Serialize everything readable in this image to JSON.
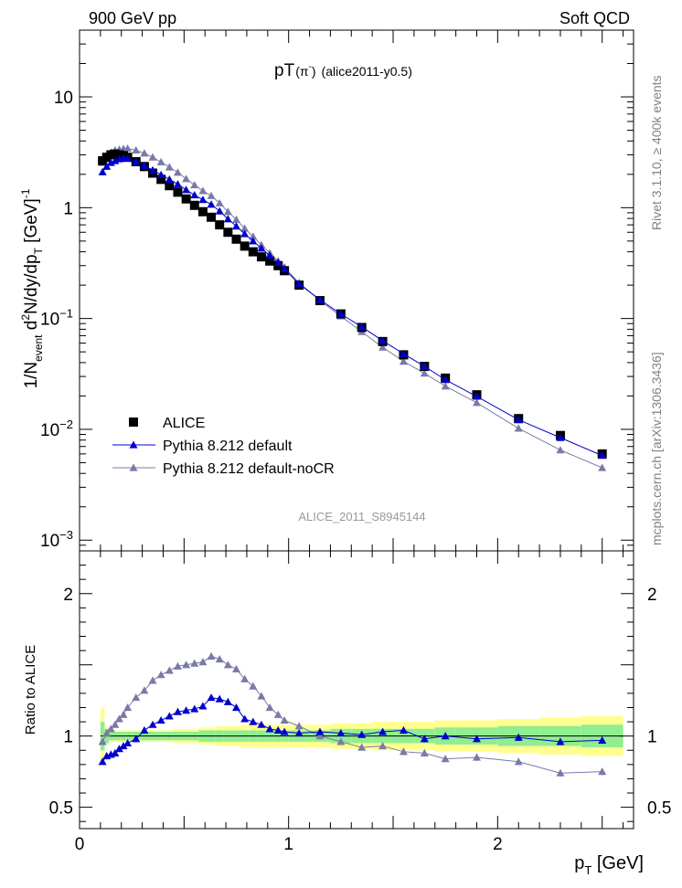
{
  "header": {
    "left": "900 GeV pp",
    "right": "Soft QCD"
  },
  "side": {
    "rivet": "Rivet 3.1.10, ≥ 400k events",
    "mcplots": "mcplots.cern.ch [arXiv:1306.3436]"
  },
  "chart_data": [
    {
      "type": "scatter",
      "title_main": "pT",
      "title_sub": "(π",
      "title_sup": "-",
      "title_close": ")",
      "title_tag": "(alice2011-y0.5)",
      "watermark": "ALICE_2011_S8945144",
      "ylabel": "1/N_event d²N/dy/dp_T [GeV]⁻¹",
      "ylabel_parts": {
        "a": "1/N",
        "a_sub": "event",
        "b": " d",
        "b_sup": "2",
        "c": "N/dy/dp",
        "c_sub": "T",
        "d": " [GeV]",
        "d_sup": "-1"
      },
      "yscale": "log",
      "xlim": [
        0,
        2.65
      ],
      "ylim": [
        0.0008,
        40
      ],
      "y_ticks": [
        {
          "v": 10,
          "m": "10",
          "e": ""
        },
        {
          "v": 1,
          "m": "1",
          "e": ""
        },
        {
          "v": 0.1,
          "m": "10",
          "e": "−1"
        },
        {
          "v": 0.01,
          "m": "10",
          "e": "−2"
        },
        {
          "v": 0.001,
          "m": "10",
          "e": "−3"
        }
      ],
      "legend": [
        "ALICE",
        "Pythia 8.212 default",
        "Pythia 8.212 default-noCR"
      ],
      "legend_position": "bottom-left",
      "series": [
        {
          "name": "ALICE",
          "color": "#000000",
          "marker": "square",
          "x": [
            0.11,
            0.13,
            0.15,
            0.17,
            0.19,
            0.21,
            0.23,
            0.27,
            0.31,
            0.35,
            0.39,
            0.43,
            0.47,
            0.51,
            0.55,
            0.59,
            0.63,
            0.67,
            0.71,
            0.75,
            0.79,
            0.83,
            0.87,
            0.91,
            0.95,
            0.98,
            1.05,
            1.15,
            1.25,
            1.35,
            1.45,
            1.55,
            1.65,
            1.75,
            1.9,
            2.1,
            2.3,
            2.5
          ],
          "y": [
            2.65,
            2.85,
            3.0,
            3.05,
            3.0,
            2.95,
            2.85,
            2.6,
            2.35,
            2.05,
            1.8,
            1.58,
            1.38,
            1.2,
            1.05,
            0.92,
            0.82,
            0.7,
            0.6,
            0.52,
            0.45,
            0.4,
            0.36,
            0.33,
            0.3,
            0.27,
            0.2,
            0.145,
            0.11,
            0.083,
            0.062,
            0.047,
            0.037,
            0.029,
            0.0205,
            0.0125,
            0.0088,
            0.006
          ]
        },
        {
          "name": "Pythia 8.212 default",
          "color": "#0000cc",
          "marker": "triangle",
          "x": [
            0.11,
            0.13,
            0.15,
            0.17,
            0.19,
            0.21,
            0.23,
            0.27,
            0.31,
            0.35,
            0.39,
            0.43,
            0.47,
            0.51,
            0.55,
            0.59,
            0.63,
            0.67,
            0.71,
            0.75,
            0.79,
            0.83,
            0.87,
            0.91,
            0.95,
            0.98,
            1.05,
            1.15,
            1.25,
            1.35,
            1.45,
            1.55,
            1.65,
            1.75,
            1.9,
            2.1,
            2.3,
            2.5
          ],
          "y": [
            2.1,
            2.35,
            2.55,
            2.65,
            2.75,
            2.8,
            2.78,
            2.6,
            2.4,
            2.18,
            1.98,
            1.8,
            1.63,
            1.45,
            1.3,
            1.18,
            1.07,
            0.93,
            0.79,
            0.68,
            0.58,
            0.5,
            0.43,
            0.37,
            0.32,
            0.28,
            0.205,
            0.148,
            0.11,
            0.084,
            0.063,
            0.048,
            0.037,
            0.028,
            0.0198,
            0.0122,
            0.0084,
            0.0058
          ]
        },
        {
          "name": "Pythia 8.212 default-noCR",
          "color": "#7a7aa8",
          "marker": "triangle",
          "x": [
            0.11,
            0.13,
            0.15,
            0.17,
            0.19,
            0.21,
            0.23,
            0.27,
            0.31,
            0.35,
            0.39,
            0.43,
            0.47,
            0.51,
            0.55,
            0.59,
            0.63,
            0.67,
            0.71,
            0.75,
            0.79,
            0.83,
            0.87,
            0.91,
            0.95,
            0.98,
            1.05,
            1.15,
            1.25,
            1.35,
            1.45,
            1.55,
            1.65,
            1.75,
            1.9,
            2.1,
            2.3,
            2.5
          ],
          "y": [
            2.55,
            2.9,
            3.15,
            3.3,
            3.35,
            3.4,
            3.42,
            3.3,
            3.1,
            2.85,
            2.58,
            2.32,
            2.08,
            1.82,
            1.6,
            1.42,
            1.28,
            1.1,
            0.92,
            0.78,
            0.65,
            0.55,
            0.46,
            0.39,
            0.33,
            0.29,
            0.21,
            0.145,
            0.105,
            0.076,
            0.055,
            0.041,
            0.032,
            0.0245,
            0.0174,
            0.0102,
            0.0065,
            0.0045
          ]
        }
      ]
    },
    {
      "type": "scatter",
      "ylabel": "Ratio to ALICE",
      "xlabel_main": "p",
      "xlabel_sub": "T",
      "xlabel_unit": " [GeV]",
      "xlim": [
        0,
        2.65
      ],
      "ylim": [
        0.35,
        2.3
      ],
      "x_ticks": [
        {
          "v": 0,
          "label": "0"
        },
        {
          "v": 1,
          "label": "1"
        },
        {
          "v": 2,
          "label": "2"
        }
      ],
      "y_ticks": [
        {
          "v": 2,
          "label": "2"
        },
        {
          "v": 1,
          "label": "1"
        },
        {
          "v": 0.5,
          "label": "0.5"
        }
      ],
      "bands": {
        "x_edges": [
          0.1,
          0.12,
          0.14,
          0.16,
          0.18,
          0.2,
          0.22,
          0.25,
          0.29,
          0.33,
          0.37,
          0.41,
          0.45,
          0.49,
          0.53,
          0.57,
          0.61,
          0.65,
          0.69,
          0.73,
          0.77,
          0.81,
          0.85,
          0.89,
          0.93,
          0.97,
          1.0,
          1.1,
          1.2,
          1.3,
          1.4,
          1.5,
          1.6,
          1.7,
          1.8,
          2.0,
          2.2,
          2.4,
          2.6
        ],
        "green_halfwidth": [
          0.1,
          0.05,
          0.03,
          0.03,
          0.03,
          0.03,
          0.03,
          0.03,
          0.03,
          0.03,
          0.03,
          0.03,
          0.03,
          0.03,
          0.03,
          0.04,
          0.04,
          0.04,
          0.04,
          0.04,
          0.04,
          0.04,
          0.04,
          0.04,
          0.04,
          0.04,
          0.04,
          0.04,
          0.05,
          0.05,
          0.05,
          0.05,
          0.05,
          0.06,
          0.06,
          0.07,
          0.07,
          0.08
        ],
        "yellow_halfwidth": [
          0.2,
          0.06,
          0.04,
          0.04,
          0.04,
          0.04,
          0.04,
          0.04,
          0.04,
          0.04,
          0.04,
          0.04,
          0.05,
          0.05,
          0.05,
          0.06,
          0.06,
          0.07,
          0.07,
          0.07,
          0.08,
          0.08,
          0.08,
          0.08,
          0.08,
          0.08,
          0.08,
          0.08,
          0.09,
          0.09,
          0.1,
          0.1,
          0.1,
          0.11,
          0.11,
          0.12,
          0.13,
          0.14
        ]
      },
      "series": [
        {
          "name": "Pythia 8.212 default",
          "color": "#0000cc",
          "marker": "triangle",
          "x": [
            0.11,
            0.13,
            0.15,
            0.17,
            0.19,
            0.21,
            0.23,
            0.27,
            0.31,
            0.35,
            0.39,
            0.43,
            0.47,
            0.51,
            0.55,
            0.59,
            0.63,
            0.67,
            0.71,
            0.75,
            0.79,
            0.83,
            0.87,
            0.91,
            0.95,
            0.98,
            1.05,
            1.15,
            1.25,
            1.35,
            1.45,
            1.55,
            1.65,
            1.75,
            1.9,
            2.1,
            2.3,
            2.5
          ],
          "y": [
            0.82,
            0.86,
            0.87,
            0.88,
            0.91,
            0.93,
            0.95,
            0.98,
            1.04,
            1.08,
            1.11,
            1.14,
            1.17,
            1.18,
            1.19,
            1.21,
            1.27,
            1.26,
            1.24,
            1.2,
            1.12,
            1.1,
            1.08,
            1.05,
            1.04,
            1.03,
            1.02,
            1.03,
            1.02,
            1.01,
            1.03,
            1.04,
            0.98,
            1.0,
            0.98,
            0.99,
            0.96,
            0.97
          ]
        },
        {
          "name": "Pythia 8.212 default-noCR",
          "color": "#7a7aa8",
          "marker": "triangle",
          "x": [
            0.11,
            0.13,
            0.15,
            0.17,
            0.19,
            0.21,
            0.23,
            0.27,
            0.31,
            0.35,
            0.39,
            0.43,
            0.47,
            0.51,
            0.55,
            0.59,
            0.63,
            0.67,
            0.71,
            0.75,
            0.79,
            0.83,
            0.87,
            0.91,
            0.95,
            0.98,
            1.05,
            1.15,
            1.25,
            1.35,
            1.45,
            1.55,
            1.65,
            1.75,
            1.9,
            2.1,
            2.3,
            2.5
          ],
          "y": [
            0.96,
            1.02,
            1.05,
            1.08,
            1.12,
            1.15,
            1.2,
            1.27,
            1.32,
            1.39,
            1.43,
            1.46,
            1.49,
            1.5,
            1.51,
            1.52,
            1.56,
            1.54,
            1.5,
            1.47,
            1.4,
            1.35,
            1.28,
            1.2,
            1.15,
            1.11,
            1.07,
            1.0,
            0.96,
            0.92,
            0.93,
            0.89,
            0.88,
            0.84,
            0.85,
            0.82,
            0.74,
            0.75
          ]
        }
      ]
    }
  ],
  "colors": {
    "alice": "#000000",
    "default": "#0000cc",
    "nocr": "#7a7aa8",
    "band_green": "#90ee90",
    "band_yellow": "#ffff90",
    "side_text": "#808080",
    "watermark": "#999999"
  }
}
